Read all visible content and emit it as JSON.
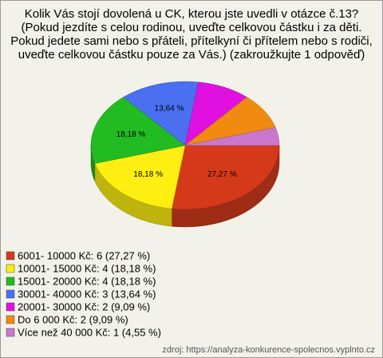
{
  "chart_data": {
    "type": "pie",
    "title": [
      "Kolik Vás stojí dovolená u CK, kterou jste uvedli v otázce č.13?",
      "(Pokud jezdíte s celou rodinou, uveďte celkovou částku i za děti.",
      "Pokud jedete sami nebo s přáteli, přítelkyní či přítelem nebo s rodiči,",
      "uveďte celkovou částku pouze za Vás.) (zakroužkujte 1 odpověď)"
    ],
    "categories": [
      "6001- 10000 Kč: 6 (27,27 %)",
      "10001- 15000 Kč: 4 (18,18 %)",
      "15001- 20000 Kč: 4 (18,18 %)",
      "30001- 40000 Kč: 3 (13,64 %)",
      "20001- 30000 Kč: 2 (9,09 %)",
      "Do 6 000 Kč: 2 (9,09 %)",
      "Více než 40 000 Kč: 1 (4,55 %)"
    ],
    "values": [
      27.27,
      18.18,
      18.18,
      13.64,
      9.09,
      9.09,
      4.55
    ],
    "value_labels": [
      "27,27 %",
      "18,18 %",
      "18,18 %",
      "13,64 %",
      null,
      null,
      null
    ],
    "colors": [
      "#d43a1a",
      "#ffee11",
      "#22bb22",
      "#4a6ff0",
      "#e011e0",
      "#f08a11",
      "#cc77cc"
    ],
    "source": "zdroj: https://analyza-konkurence-spolecnos.vyplnto.cz"
  }
}
